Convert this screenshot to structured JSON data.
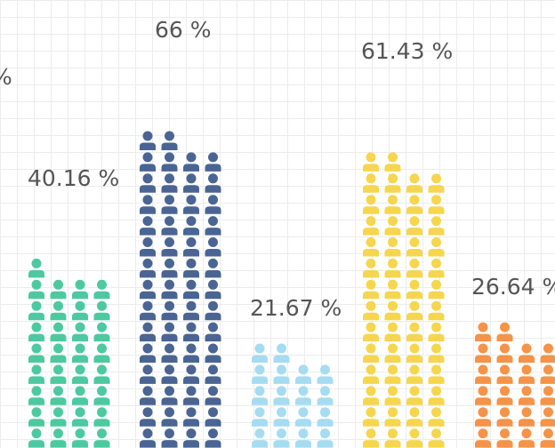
{
  "chart_data": {
    "type": "bar",
    "subtype": "pictorial-person-icons",
    "icon": "person-icon",
    "categories": [
      "",
      "",
      "",
      "",
      "",
      ""
    ],
    "values": [
      null,
      40.16,
      66,
      21.67,
      61.43,
      26.64
    ],
    "labels": [
      "%",
      "40.16 %",
      "66 %",
      "21.67 %",
      "61.43 %",
      "26.64 %"
    ],
    "colors": [
      "#4dc9a0",
      "#4dc9a0",
      "#4a6593",
      "#a6dcf2",
      "#f5d64e",
      "#f59348"
    ],
    "grid": true,
    "legend": "none"
  }
}
